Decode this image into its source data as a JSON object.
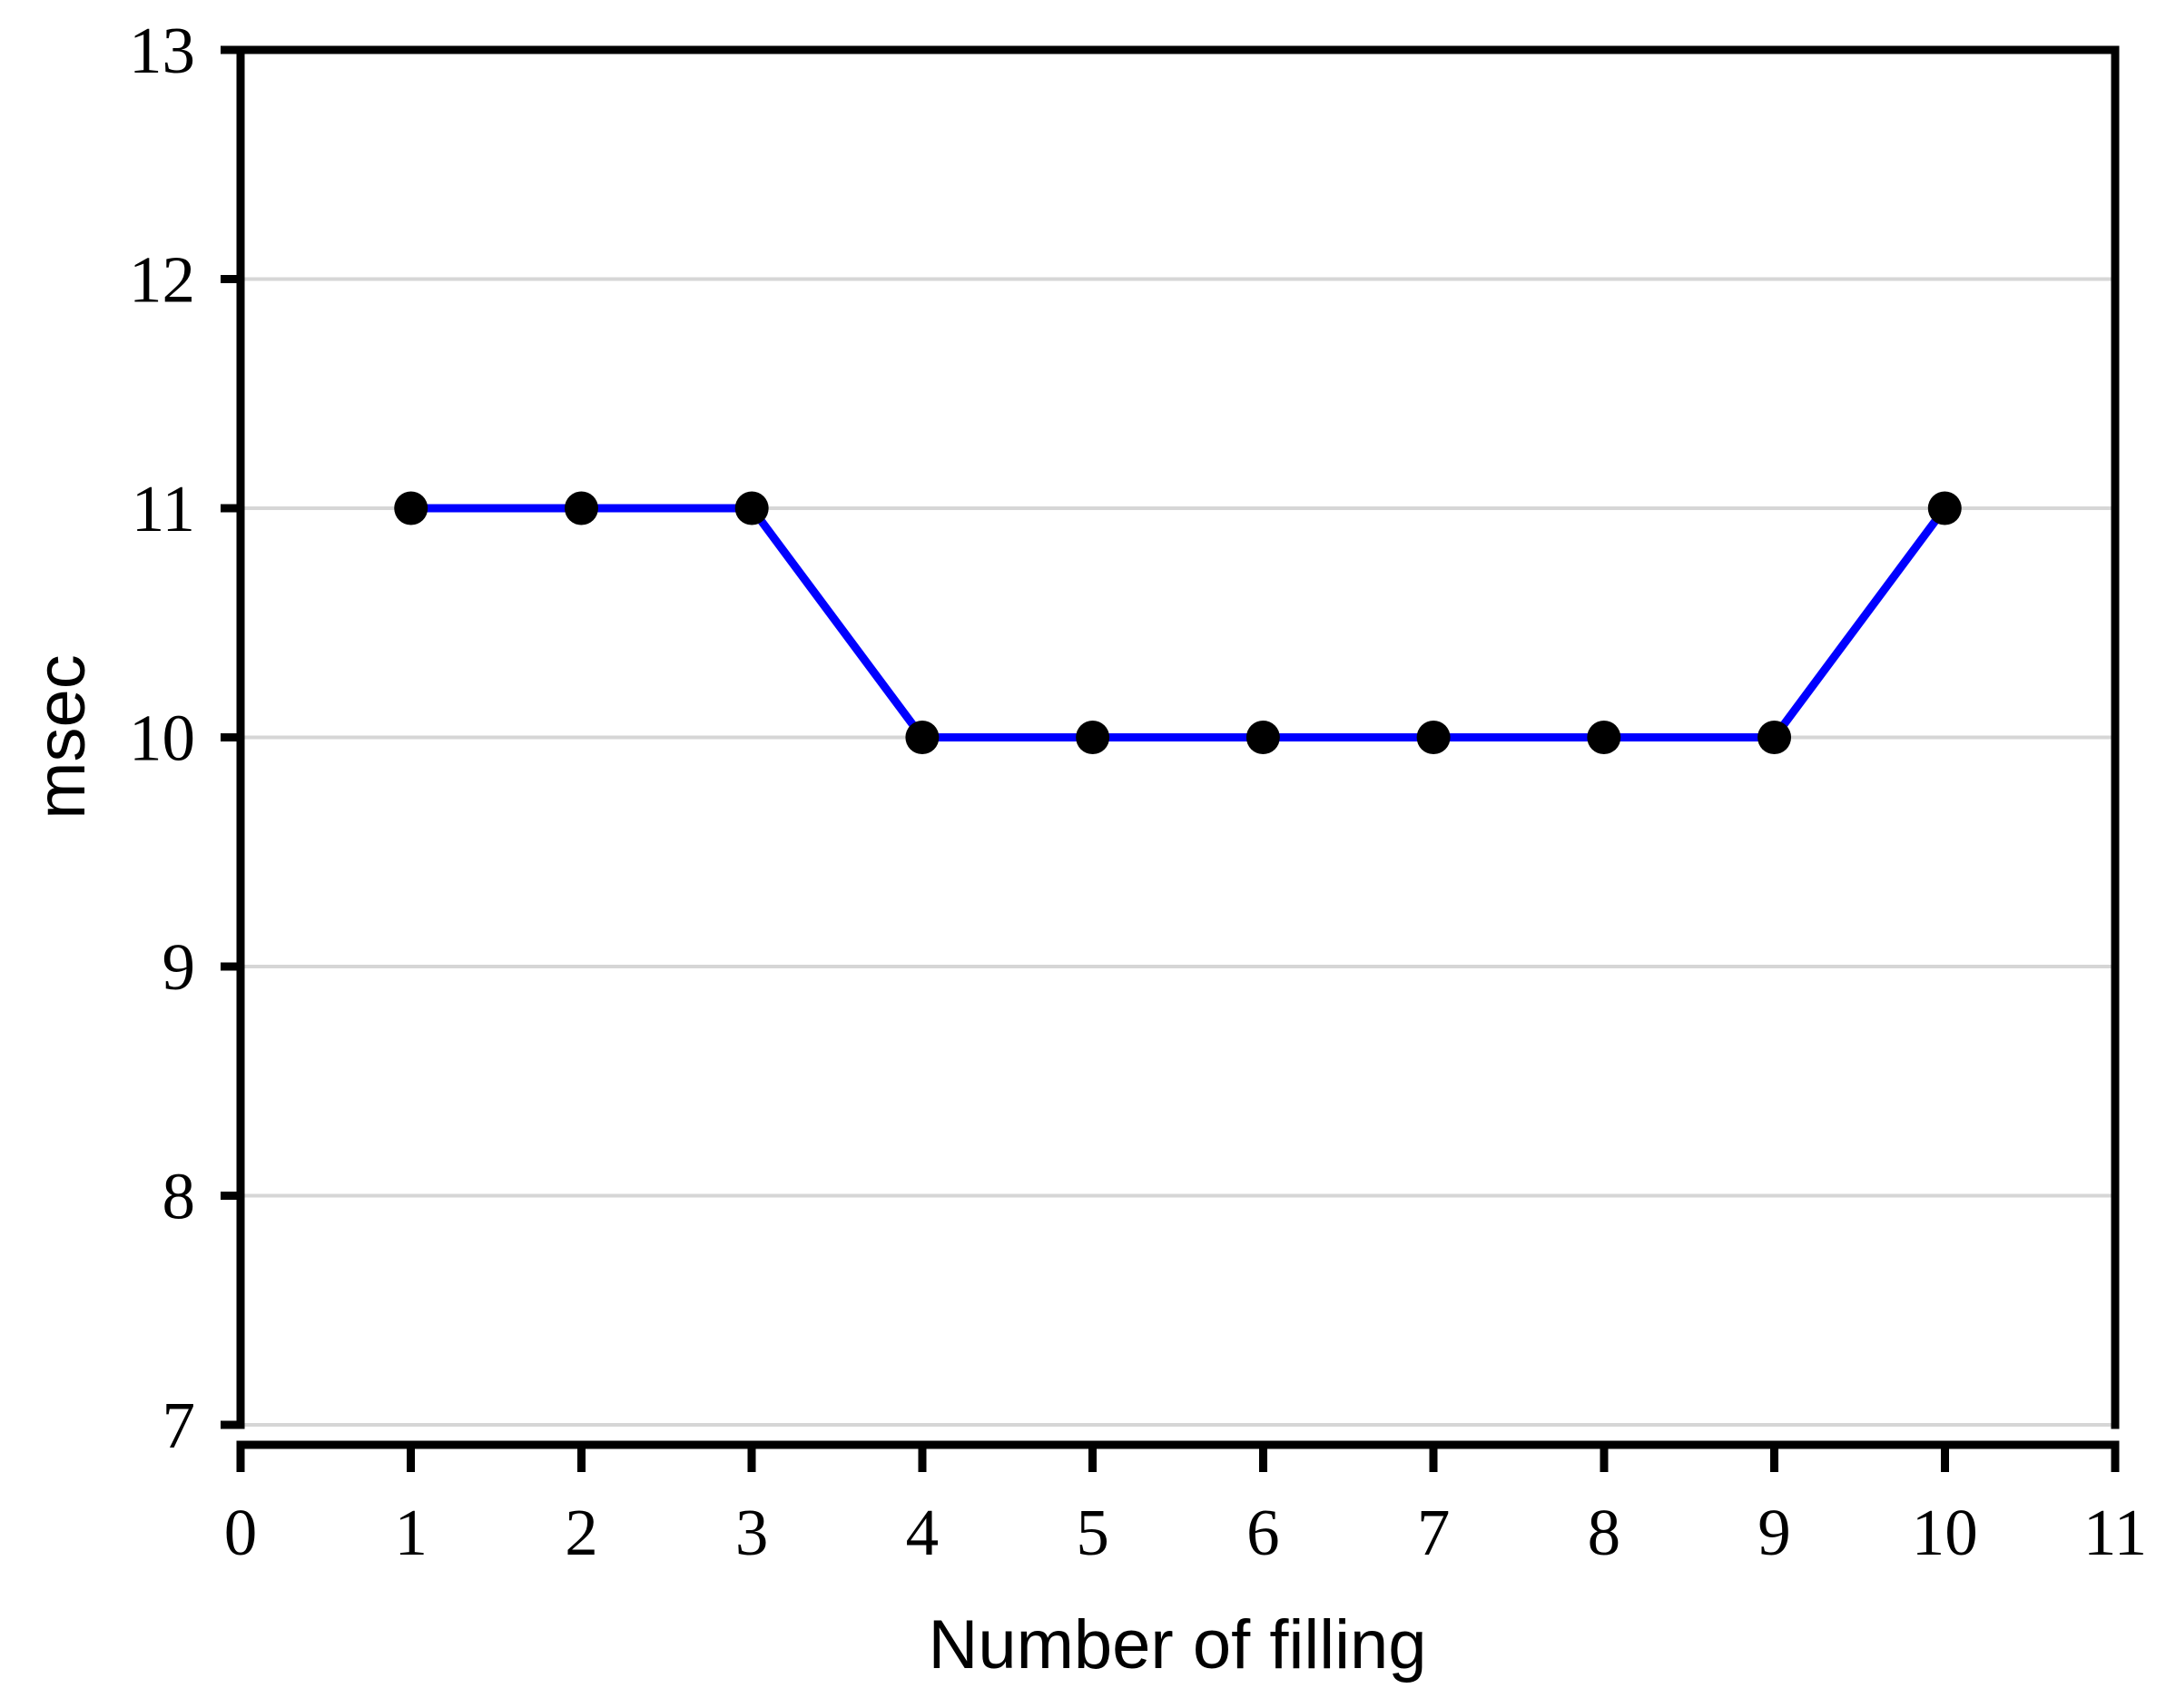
{
  "chart_data": {
    "type": "line",
    "title": "",
    "xlabel": "Number of filling",
    "ylabel": "msec",
    "x": [
      1,
      2,
      3,
      4,
      5,
      6,
      7,
      8,
      9,
      10
    ],
    "y": [
      11,
      11,
      11,
      10,
      10,
      10,
      10,
      10,
      10,
      11
    ],
    "xlim": [
      0,
      11
    ],
    "ylim": [
      7,
      13
    ],
    "x_ticks": [
      0,
      1,
      2,
      3,
      4,
      5,
      6,
      7,
      8,
      9,
      10,
      11
    ],
    "y_ticks": [
      7,
      8,
      9,
      10,
      11,
      12,
      13
    ],
    "grid": "horizontal-major",
    "legend": "none",
    "colors": {
      "line": "#0000FF",
      "marker": "#000000",
      "gridline": "#D6D6D6",
      "frame": "#000000",
      "background": "#FFFFFF"
    }
  }
}
